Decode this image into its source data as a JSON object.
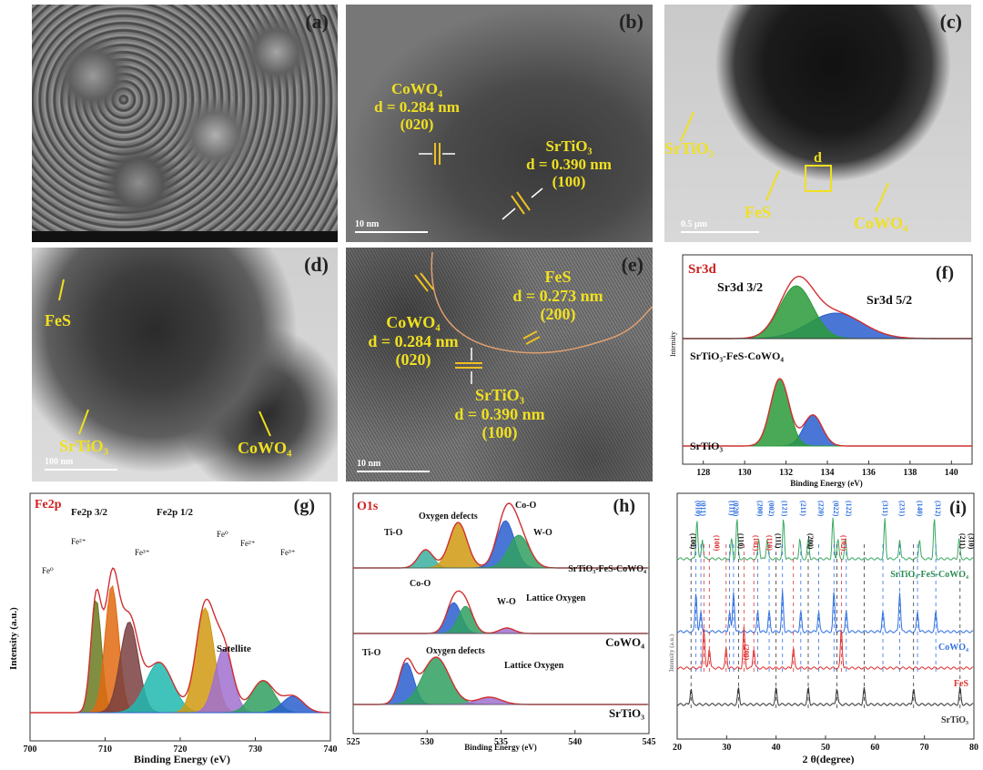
{
  "panels": {
    "a": {
      "tag": "(a)"
    },
    "b": {
      "tag": "(b)",
      "cowo4": "CoWO₄",
      "cowo4_d": "d = 0.284 nm",
      "cowo4_hkl": "(020)",
      "srtio3": "SrTiO₃",
      "srtio3_d": "d = 0.390 nm",
      "srtio3_hkl": "(100)",
      "scale": "10 nm"
    },
    "c": {
      "tag": "(c)",
      "srtio3": "SrTiO₃",
      "fes": "FeS",
      "d": "d",
      "cowo4": "CoWO₄",
      "scale": "0.5 μm"
    },
    "d": {
      "tag": "(d)",
      "fes": "FeS",
      "srtio3": "SrTiO₃",
      "cowo4": "CoWO₄",
      "scale": "100 nm"
    },
    "e": {
      "tag": "(e)",
      "fes": "FeS",
      "fes_d": "d = 0.273 nm",
      "fes_hkl": "(200)",
      "cowo4": "CoWO₄",
      "cowo4_d": "d = 0.284 nm",
      "cowo4_hkl": "(020)",
      "srtio3": "SrTiO₃",
      "srtio3_d": "d = 0.390 nm",
      "srtio3_hkl": "(100)",
      "scale": "10 nm"
    },
    "f": {
      "tag": "(f)",
      "title": "Sr3d",
      "peak1": "Sr3d 3/2",
      "peak2": "Sr3d 5/2",
      "ylabel": "Intensity",
      "sample1": "SrTiO₃-FeS-CoWO₄",
      "sample2": "SrTiO₃",
      "xlabel": "Binding Energy (eV)"
    },
    "g": {
      "tag": "(g)",
      "title": "Fe2p",
      "fe2p32": "Fe2p 3/2",
      "fe2p12": "Fe2p 1/2",
      "fe2plus_a": "Fe²⁺",
      "fe3plus_a": "Fe³⁺",
      "fe0_a": "Fe⁰",
      "fe0_b": "Fe⁰",
      "fe2plus_b": "Fe²⁺",
      "fe3plus_b": "Fe³⁺",
      "satellite": "Satellite",
      "ylabel": "Intensity (a.u.)",
      "xlabel": "Binding Energy (eV)"
    },
    "h": {
      "tag": "(h)",
      "title": "O1s",
      "tio1": "Ti-O",
      "od1": "Oxygen defects",
      "coo1": "Co-O",
      "wo1": "W-O",
      "sample1": "SrTiO₃-FeS-CoWO₄",
      "coo2": "Co-O",
      "wo2": "W-O",
      "lo2": "Lattice Oxygen",
      "sample2": "CoWO₄",
      "tio3": "Ti-O",
      "od3": "Oxygen defects",
      "lo3": "Lattice Oxygen",
      "sample3": "SrTiO₃",
      "xlabel": "Binding Energy (eV)"
    },
    "i": {
      "tag": "(i)",
      "sample1": "SrTiO₃-FeS-CoWO₄",
      "sample2": "CoWO₄",
      "sample3": "FeS",
      "sample4": "SrTiO₃",
      "ylabel": "Intensity (a.u.)",
      "xlabel": "2 θ(degree)",
      "hkl_black": [
        "(100)",
        "(110)",
        "(111)",
        "(200)",
        "(211)",
        "(310)"
      ],
      "hkl_red": [
        "(100)",
        "(101)",
        "(110)",
        "(103)",
        "(200)"
      ],
      "hkl_blue": [
        "(010)",
        "(011)",
        "(111)",
        "(020)",
        "(200)",
        "(002)",
        "(121)",
        "(211)",
        "(220)",
        "(022)",
        "(122)",
        "(311)",
        "(231)",
        "(140)",
        "(312)"
      ]
    }
  },
  "chart_data": [
    {
      "type": "line",
      "title": "Sr3d",
      "xlabel": "Binding Energy (eV)",
      "ylabel": "Intensity",
      "xlim": [
        127,
        141
      ],
      "x_ticks": [
        128,
        130,
        132,
        134,
        136,
        138,
        140
      ],
      "series": [
        {
          "name": "SrTiO₃-FeS-CoWO₄",
          "peaks": [
            {
              "label": "Sr3d 3/2",
              "x": 132.5
            },
            {
              "label": "Sr3d 5/2",
              "x": 134.4
            }
          ]
        },
        {
          "name": "SrTiO₃",
          "peaks": [
            {
              "x": 131.7
            },
            {
              "x": 133.3
            }
          ]
        }
      ]
    },
    {
      "type": "line",
      "title": "Fe2p",
      "xlabel": "Binding Energy (eV)",
      "ylabel": "Intensity (a.u.)",
      "xlim": [
        700,
        740
      ],
      "x_ticks": [
        700,
        710,
        720,
        730,
        740
      ],
      "peaks": [
        {
          "label": "Fe⁰",
          "x": 708.8
        },
        {
          "label": "Fe²⁺",
          "x": 710.9
        },
        {
          "label": "Fe³⁺",
          "x": 713.2
        },
        {
          "label": "Satellite",
          "x": 717.2
        },
        {
          "label": "Fe⁰",
          "x": 723.3
        },
        {
          "label": "Fe²⁺",
          "x": 725.8
        },
        {
          "label": "Fe³⁺",
          "x": 731
        }
      ]
    },
    {
      "type": "line",
      "title": "O1s",
      "xlabel": "Binding Energy (eV)",
      "xlim": [
        525,
        545
      ],
      "x_ticks": [
        525,
        530,
        535,
        540,
        545
      ],
      "series": [
        {
          "name": "SrTiO₃-FeS-CoWO₄",
          "peaks": [
            {
              "label": "Ti-O",
              "x": 529.9
            },
            {
              "label": "Oxygen defects",
              "x": 532.1
            },
            {
              "label": "Co-O",
              "x": 535.3
            },
            {
              "label": "W-O",
              "x": 536.2
            }
          ]
        },
        {
          "name": "CoWO₄",
          "peaks": [
            {
              "label": "Co-O",
              "x": 531.8
            },
            {
              "label": "W-O",
              "x": 532.6
            },
            {
              "label": "Lattice Oxygen",
              "x": 535.4
            }
          ]
        },
        {
          "name": "SrTiO₃",
          "peaks": [
            {
              "label": "Ti-O",
              "x": 528.6
            },
            {
              "label": "Oxygen defects",
              "x": 530.6
            },
            {
              "label": "Lattice Oxygen",
              "x": 534.2
            }
          ]
        }
      ]
    },
    {
      "type": "line",
      "xlabel": "2 θ(degree)",
      "ylabel": "Intensity (a.u.)",
      "xlim": [
        20,
        80
      ],
      "x_ticks": [
        20,
        30,
        40,
        50,
        60,
        70,
        80
      ],
      "series": [
        {
          "name": "SrTiO₃-FeS-CoWO₄",
          "color": "#3aa860",
          "peaks": [
            24,
            25.1,
            31,
            32.1,
            36.5,
            38.2,
            41.5,
            44.8,
            46.5,
            51.5,
            52.5,
            54,
            62,
            65,
            69,
            72,
            77
          ]
        },
        {
          "name": "CoWO₄",
          "color": "#2f6fe0",
          "peaks": [
            23.8,
            24.8,
            30.6,
            31.4,
            36.3,
            38.6,
            41.3,
            45,
            48.6,
            51.7,
            54.2,
            61.6,
            65,
            68.6,
            72.3
          ]
        },
        {
          "name": "FeS",
          "color": "#e03030",
          "peaks": [
            25.4,
            26.5,
            29.9,
            33.5,
            35.5,
            43.5,
            53.2
          ]
        },
        {
          "name": "SrTiO₃",
          "color": "#333333",
          "peaks": [
            22.8,
            32.4,
            40,
            46.5,
            52.3,
            57.8,
            67.8,
            77.2
          ]
        }
      ]
    }
  ]
}
